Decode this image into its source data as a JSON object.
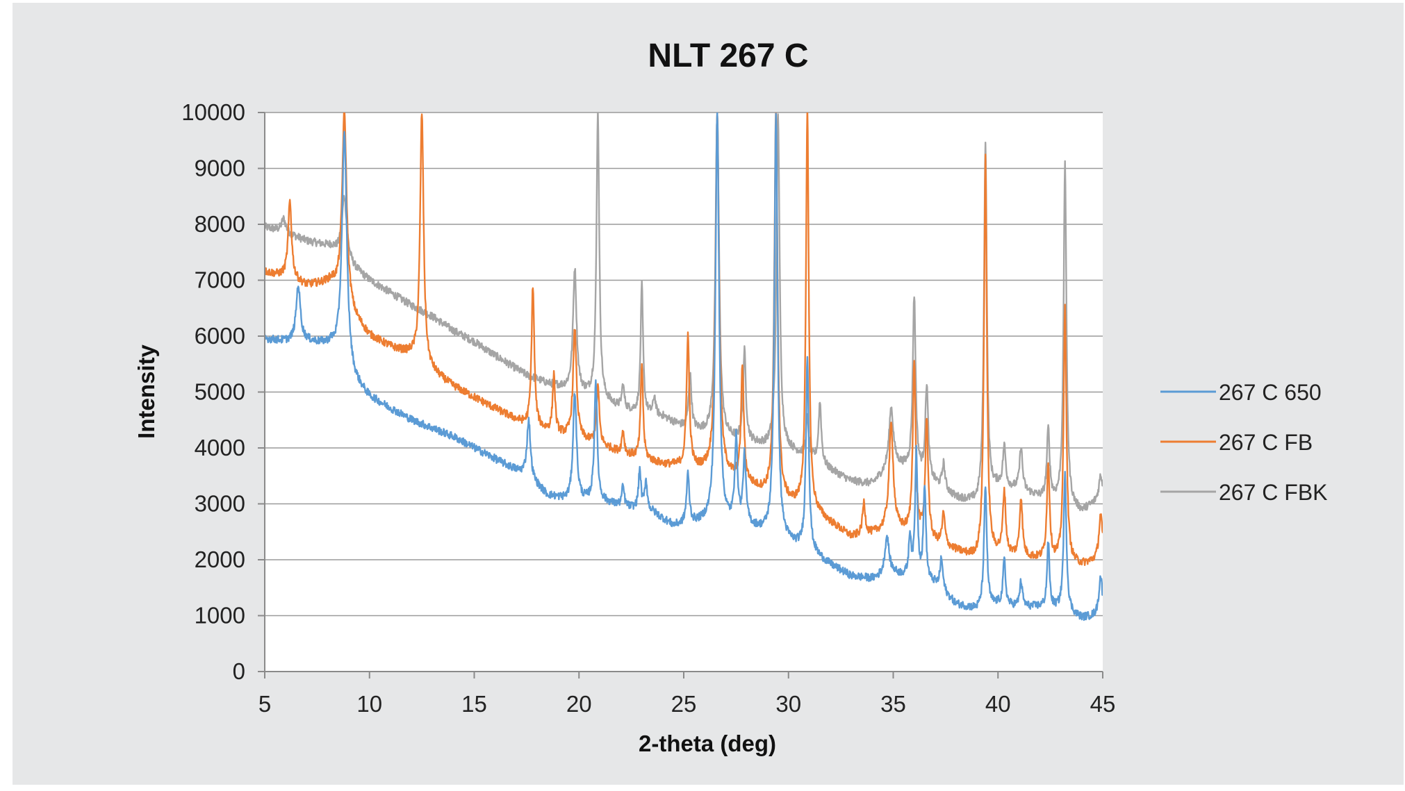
{
  "chart_data": {
    "type": "line",
    "title": "NLT 267 C",
    "xlabel": "2-theta (deg)",
    "ylabel": "Intensity",
    "xlim": [
      5,
      45
    ],
    "ylim": [
      0,
      10000
    ],
    "xticks": [
      5,
      10,
      15,
      20,
      25,
      30,
      35,
      40,
      45
    ],
    "yticks": [
      0,
      1000,
      2000,
      3000,
      4000,
      5000,
      6000,
      7000,
      8000,
      9000,
      10000
    ],
    "grid": "horizontal",
    "legend_position": "right",
    "series": [
      {
        "name": "267 C 650",
        "color": "#5b9bd5",
        "baseline": [
          [
            5,
            5950
          ],
          [
            6,
            5900
          ],
          [
            7,
            5900
          ],
          [
            8.2,
            5800
          ],
          [
            9.3,
            5150
          ],
          [
            10,
            4900
          ],
          [
            12,
            4500
          ],
          [
            14,
            4200
          ],
          [
            16,
            3800
          ],
          [
            17.5,
            3500
          ],
          [
            18.5,
            3150
          ],
          [
            19.5,
            3050
          ],
          [
            21,
            3050
          ],
          [
            22,
            2950
          ],
          [
            23.5,
            2850
          ],
          [
            24.5,
            2600
          ],
          [
            26,
            2650
          ],
          [
            28,
            2600
          ],
          [
            29,
            2450
          ],
          [
            30,
            2300
          ],
          [
            31,
            2150
          ],
          [
            32,
            1900
          ],
          [
            33,
            1700
          ],
          [
            34,
            1650
          ],
          [
            35,
            1750
          ],
          [
            36,
            1650
          ],
          [
            37,
            1550
          ],
          [
            38,
            1200
          ],
          [
            39,
            1100
          ],
          [
            40,
            1200
          ],
          [
            41,
            1150
          ],
          [
            42,
            1150
          ],
          [
            43,
            1100
          ],
          [
            44,
            950
          ],
          [
            45,
            1000
          ]
        ],
        "peaks": [
          [
            6.6,
            6900,
            0.12
          ],
          [
            8.8,
            9600,
            0.14
          ],
          [
            17.6,
            4500,
            0.1
          ],
          [
            19.8,
            5000,
            0.1
          ],
          [
            20.8,
            5200,
            0.08
          ],
          [
            22.1,
            3300,
            0.07
          ],
          [
            22.9,
            3600,
            0.07
          ],
          [
            23.2,
            3400,
            0.07
          ],
          [
            25.2,
            3500,
            0.08
          ],
          [
            26.6,
            10000,
            0.1
          ],
          [
            27.5,
            4100,
            0.08
          ],
          [
            27.9,
            3800,
            0.08
          ],
          [
            29.4,
            10000,
            0.09
          ],
          [
            30.9,
            5600,
            0.08
          ],
          [
            34.7,
            2400,
            0.12
          ],
          [
            35.8,
            2400,
            0.07
          ],
          [
            36.1,
            3900,
            0.07
          ],
          [
            36.5,
            3300,
            0.07
          ],
          [
            37.3,
            2000,
            0.08
          ],
          [
            39.4,
            3300,
            0.08
          ],
          [
            40.3,
            2000,
            0.07
          ],
          [
            41.1,
            1600,
            0.08
          ],
          [
            42.4,
            2300,
            0.07
          ],
          [
            43.2,
            3500,
            0.08
          ],
          [
            44.9,
            1700,
            0.1
          ]
        ],
        "noise": 70
      },
      {
        "name": "267 C FB",
        "color": "#ed7d31",
        "baseline": [
          [
            5,
            7150
          ],
          [
            6,
            7050
          ],
          [
            7,
            6900
          ],
          [
            8.2,
            6950
          ],
          [
            9.3,
            6300
          ],
          [
            10,
            6000
          ],
          [
            11,
            5800
          ],
          [
            12,
            5650
          ],
          [
            12.8,
            5400
          ],
          [
            14,
            5100
          ],
          [
            15,
            4900
          ],
          [
            16,
            4700
          ],
          [
            17.5,
            4400
          ],
          [
            18.5,
            4300
          ],
          [
            19.5,
            4200
          ],
          [
            21,
            4050
          ],
          [
            22,
            3900
          ],
          [
            23,
            3800
          ],
          [
            24,
            3700
          ],
          [
            25,
            3650
          ],
          [
            26,
            3600
          ],
          [
            27,
            3500
          ],
          [
            28,
            3350
          ],
          [
            29,
            3150
          ],
          [
            30,
            3000
          ],
          [
            31,
            2900
          ],
          [
            32,
            2650
          ],
          [
            33,
            2400
          ],
          [
            34,
            2450
          ],
          [
            35,
            2550
          ],
          [
            36,
            2450
          ],
          [
            37,
            2300
          ],
          [
            38,
            2150
          ],
          [
            39,
            2000
          ],
          [
            40,
            2100
          ],
          [
            41,
            2050
          ],
          [
            42,
            2000
          ],
          [
            43,
            1950
          ],
          [
            44,
            1900
          ],
          [
            45,
            2000
          ]
        ],
        "peaks": [
          [
            6.2,
            8400,
            0.1
          ],
          [
            8.8,
            10000,
            0.13
          ],
          [
            12.5,
            10000,
            0.1
          ],
          [
            17.8,
            6900,
            0.08
          ],
          [
            18.8,
            5300,
            0.07
          ],
          [
            19.8,
            6100,
            0.1
          ],
          [
            20.9,
            5100,
            0.08
          ],
          [
            22.1,
            4300,
            0.07
          ],
          [
            23.0,
            5500,
            0.07
          ],
          [
            25.2,
            6000,
            0.08
          ],
          [
            26.6,
            10000,
            0.1
          ],
          [
            27.8,
            5400,
            0.08
          ],
          [
            29.4,
            10000,
            0.09
          ],
          [
            30.9,
            10000,
            0.08
          ],
          [
            33.6,
            3000,
            0.08
          ],
          [
            34.9,
            4400,
            0.12
          ],
          [
            36.0,
            5500,
            0.08
          ],
          [
            36.6,
            4500,
            0.08
          ],
          [
            37.4,
            2800,
            0.08
          ],
          [
            39.4,
            9200,
            0.08
          ],
          [
            40.3,
            3200,
            0.08
          ],
          [
            41.1,
            3100,
            0.08
          ],
          [
            42.4,
            3700,
            0.08
          ],
          [
            43.2,
            6500,
            0.08
          ],
          [
            44.9,
            2800,
            0.1
          ]
        ],
        "noise": 70
      },
      {
        "name": "267 C FBK",
        "color": "#a5a5a5",
        "baseline": [
          [
            5,
            7950
          ],
          [
            6,
            7850
          ],
          [
            7,
            7700
          ],
          [
            8.2,
            7600
          ],
          [
            9.3,
            7200
          ],
          [
            10,
            7000
          ],
          [
            12,
            6550
          ],
          [
            13,
            6350
          ],
          [
            14,
            6100
          ],
          [
            15,
            5900
          ],
          [
            16,
            5650
          ],
          [
            17.5,
            5300
          ],
          [
            18.5,
            5150
          ],
          [
            19.5,
            5050
          ],
          [
            21,
            4850
          ],
          [
            22,
            4700
          ],
          [
            23,
            4600
          ],
          [
            24,
            4550
          ],
          [
            25,
            4350
          ],
          [
            26,
            4250
          ],
          [
            27,
            4150
          ],
          [
            28,
            4100
          ],
          [
            29,
            4000
          ],
          [
            30,
            3950
          ],
          [
            31,
            3800
          ],
          [
            32,
            3600
          ],
          [
            33,
            3400
          ],
          [
            34,
            3350
          ],
          [
            35,
            3700
          ],
          [
            36,
            3600
          ],
          [
            37,
            3350
          ],
          [
            38,
            3100
          ],
          [
            39,
            3000
          ],
          [
            40,
            3300
          ],
          [
            41,
            3250
          ],
          [
            42,
            3100
          ],
          [
            43,
            3000
          ],
          [
            44,
            2850
          ],
          [
            45,
            3100
          ]
        ],
        "peaks": [
          [
            5.9,
            8100,
            0.12
          ],
          [
            8.8,
            8500,
            0.14
          ],
          [
            19.8,
            7200,
            0.1
          ],
          [
            20.9,
            10000,
            0.08
          ],
          [
            22.1,
            5100,
            0.07
          ],
          [
            23.0,
            6900,
            0.07
          ],
          [
            23.6,
            4900,
            0.07
          ],
          [
            25.3,
            5300,
            0.08
          ],
          [
            26.6,
            10000,
            0.1
          ],
          [
            27.9,
            5700,
            0.08
          ],
          [
            29.5,
            10000,
            0.09
          ],
          [
            30.9,
            4500,
            0.08
          ],
          [
            31.5,
            4800,
            0.08
          ],
          [
            34.9,
            4700,
            0.12
          ],
          [
            36.0,
            6700,
            0.08
          ],
          [
            36.6,
            5100,
            0.08
          ],
          [
            37.4,
            3700,
            0.08
          ],
          [
            39.4,
            9500,
            0.08
          ],
          [
            40.3,
            4000,
            0.08
          ],
          [
            41.1,
            4000,
            0.08
          ],
          [
            42.4,
            4300,
            0.08
          ],
          [
            43.2,
            9100,
            0.08
          ],
          [
            44.9,
            3500,
            0.1
          ]
        ],
        "noise": 70
      }
    ]
  }
}
